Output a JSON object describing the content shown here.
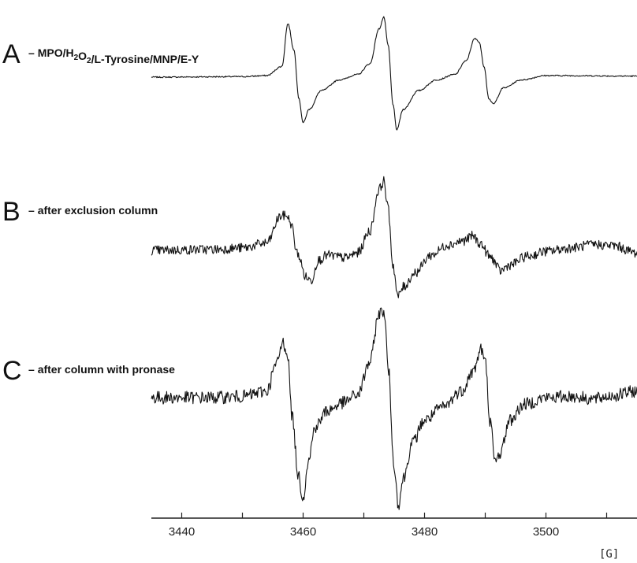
{
  "chart_data": {
    "type": "line",
    "title": "",
    "xlabel": "",
    "ylabel": "",
    "x_unit": "[G]",
    "xlim": [
      3435,
      3515
    ],
    "x_ticks": [
      3440,
      3450,
      3460,
      3470,
      3480,
      3490,
      3500,
      3510
    ],
    "x_tick_labels": [
      "3440",
      "3460",
      "3480",
      "3500"
    ],
    "grid": false,
    "legend": "none",
    "line_color": "#111111",
    "spectrum_lines_G": [
      3457.5,
      3473.3,
      3489.0
    ],
    "panels": [
      {
        "letter": "A",
        "description_parts": [
          "MPO/H",
          "2",
          "O",
          "2",
          "/L-Tyrosine/MNP/E-Y"
        ],
        "points": [
          [
            3435,
            0
          ],
          [
            3450,
            0.01
          ],
          [
            3454,
            0.03
          ],
          [
            3456.5,
            0.2
          ],
          [
            3457.5,
            1.0
          ],
          [
            3458.5,
            0.5
          ],
          [
            3459.3,
            -0.4
          ],
          [
            3460,
            -0.85
          ],
          [
            3461,
            -0.6
          ],
          [
            3463,
            -0.25
          ],
          [
            3466,
            -0.05
          ],
          [
            3469,
            0.05
          ],
          [
            3471,
            0.25
          ],
          [
            3472.5,
            0.9
          ],
          [
            3473.3,
            1.12
          ],
          [
            3474,
            0.6
          ],
          [
            3474.8,
            -0.5
          ],
          [
            3475.4,
            -0.98
          ],
          [
            3476.5,
            -0.6
          ],
          [
            3479,
            -0.25
          ],
          [
            3482,
            -0.05
          ],
          [
            3485,
            0.05
          ],
          [
            3486.8,
            0.3
          ],
          [
            3488.3,
            0.72
          ],
          [
            3489,
            0.66
          ],
          [
            3489.8,
            0.2
          ],
          [
            3490.6,
            -0.4
          ],
          [
            3491.3,
            -0.5
          ],
          [
            3493,
            -0.2
          ],
          [
            3496,
            -0.05
          ],
          [
            3500,
            0.03
          ],
          [
            3515,
            0.02
          ]
        ],
        "noise": 0.012
      },
      {
        "letter": "B",
        "description_parts": [
          "after exclusion column"
        ],
        "points": [
          [
            3435,
            0
          ],
          [
            3445,
            0.02
          ],
          [
            3450,
            0.05
          ],
          [
            3454,
            0.15
          ],
          [
            3456.3,
            0.7
          ],
          [
            3457.3,
            0.72
          ],
          [
            3458,
            0.55
          ],
          [
            3459,
            -0.05
          ],
          [
            3460.5,
            -0.55
          ],
          [
            3461.3,
            -0.62
          ],
          [
            3462.5,
            -0.2
          ],
          [
            3464,
            -0.1
          ],
          [
            3467,
            -0.15
          ],
          [
            3469,
            -0.05
          ],
          [
            3471,
            0.4
          ],
          [
            3472.5,
            1.25
          ],
          [
            3473.3,
            1.42
          ],
          [
            3474,
            0.85
          ],
          [
            3474.8,
            -0.3
          ],
          [
            3475.6,
            -0.95
          ],
          [
            3476.5,
            -0.75
          ],
          [
            3478.5,
            -0.45
          ],
          [
            3481,
            -0.1
          ],
          [
            3484,
            0.12
          ],
          [
            3486.5,
            0.2
          ],
          [
            3488,
            0.3
          ],
          [
            3489,
            0.15
          ],
          [
            3491,
            -0.15
          ],
          [
            3492.5,
            -0.42
          ],
          [
            3494,
            -0.3
          ],
          [
            3497,
            -0.12
          ],
          [
            3500,
            -0.02
          ],
          [
            3504,
            0.05
          ],
          [
            3508,
            0.12
          ],
          [
            3511,
            0.1
          ],
          [
            3515,
            -0.05
          ]
        ],
        "noise": 0.1
      },
      {
        "letter": "C",
        "description_parts": [
          "after column with pronase"
        ],
        "points": [
          [
            3435,
            0
          ],
          [
            3445,
            0
          ],
          [
            3450,
            0.02
          ],
          [
            3454,
            0.1
          ],
          [
            3455.5,
            0.5
          ],
          [
            3456.7,
            0.85
          ],
          [
            3457.4,
            0.7
          ],
          [
            3458.2,
            -0.3
          ],
          [
            3459.2,
            -1.2
          ],
          [
            3460,
            -1.55
          ],
          [
            3460.8,
            -1.0
          ],
          [
            3462,
            -0.45
          ],
          [
            3464,
            -0.2
          ],
          [
            3466.5,
            -0.08
          ],
          [
            3469,
            0.05
          ],
          [
            3471,
            0.55
          ],
          [
            3472.5,
            1.3
          ],
          [
            3473.3,
            1.35
          ],
          [
            3474.1,
            0.4
          ],
          [
            3474.9,
            -1.0
          ],
          [
            3475.7,
            -1.65
          ],
          [
            3476.5,
            -1.25
          ],
          [
            3478,
            -0.7
          ],
          [
            3480,
            -0.35
          ],
          [
            3483,
            -0.15
          ],
          [
            3486,
            0.1
          ],
          [
            3488,
            0.4
          ],
          [
            3489.3,
            0.75
          ],
          [
            3490,
            0.55
          ],
          [
            3490.8,
            -0.35
          ],
          [
            3491.6,
            -1.0
          ],
          [
            3492.5,
            -0.85
          ],
          [
            3494,
            -0.35
          ],
          [
            3496.5,
            -0.1
          ],
          [
            3500,
            0
          ],
          [
            3504,
            0.02
          ],
          [
            3508,
            -0.02
          ],
          [
            3511,
            0.03
          ],
          [
            3515,
            0.1
          ]
        ],
        "noise": 0.1
      }
    ]
  }
}
